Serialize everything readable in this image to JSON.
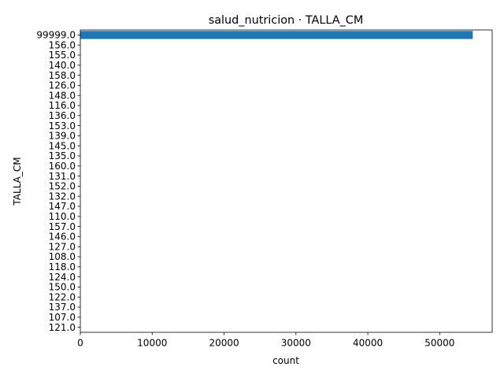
{
  "chart_data": {
    "type": "bar",
    "orientation": "horizontal",
    "title": "salud_nutricion · TALLA_CM",
    "xlabel": "count",
    "ylabel": "TALLA_CM",
    "xlim": [
      0,
      57300
    ],
    "x_ticks": [
      0,
      10000,
      20000,
      30000,
      40000,
      50000
    ],
    "grid": false,
    "bar_color": "#1f77b4",
    "categories": [
      "99999.0",
      "156.0",
      "155.0",
      "140.0",
      "158.0",
      "126.0",
      "148.0",
      "116.0",
      "136.0",
      "153.0",
      "139.0",
      "145.0",
      "135.0",
      "160.0",
      "131.0",
      "152.0",
      "132.0",
      "147.0",
      "110.0",
      "157.0",
      "146.0",
      "127.0",
      "108.0",
      "118.0",
      "124.0",
      "150.0",
      "122.0",
      "137.0",
      "107.0",
      "121.0"
    ],
    "values": [
      54600,
      1,
      1,
      1,
      1,
      1,
      1,
      1,
      1,
      1,
      1,
      1,
      1,
      1,
      1,
      1,
      1,
      1,
      1,
      1,
      1,
      1,
      1,
      1,
      1,
      1,
      1,
      1,
      1,
      1
    ]
  }
}
